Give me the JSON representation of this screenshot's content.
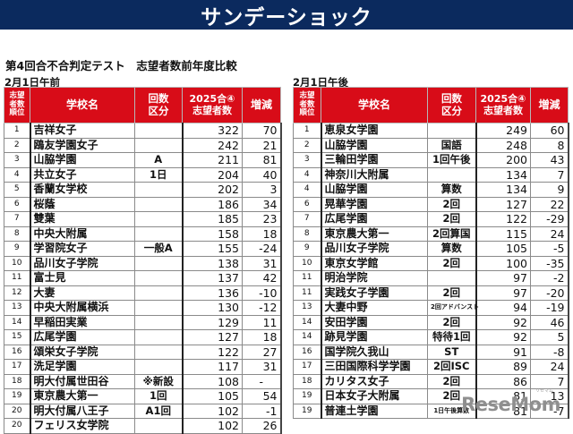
{
  "banner": {
    "title": "サンデーショック"
  },
  "subtitle": "第4回合不合判定テスト　志望者数前年度比較",
  "headers": {
    "rank": [
      "志望",
      "者数",
      "順位"
    ],
    "name": "学校名",
    "type": [
      "回数",
      "区分"
    ],
    "count": [
      "2025合④",
      "志望者数"
    ],
    "diff": "増減"
  },
  "tables": [
    {
      "label": "2月1日午前",
      "rows": [
        {
          "rank": "1",
          "name": "吉祥女子",
          "type": "",
          "count": "322",
          "diff": "70"
        },
        {
          "rank": "2",
          "name": "鴎友学園女子",
          "type": "",
          "count": "242",
          "diff": "21"
        },
        {
          "rank": "3",
          "name": "山脇学園",
          "type": "A",
          "count": "211",
          "diff": "81"
        },
        {
          "rank": "4",
          "name": "共立女子",
          "type": "1日",
          "count": "204",
          "diff": "40"
        },
        {
          "rank": "5",
          "name": "香蘭女学校",
          "type": "",
          "count": "202",
          "diff": "3"
        },
        {
          "rank": "6",
          "name": "桜蔭",
          "type": "",
          "count": "186",
          "diff": "34"
        },
        {
          "rank": "7",
          "name": "雙葉",
          "type": "",
          "count": "185",
          "diff": "23"
        },
        {
          "rank": "8",
          "name": "中央大附属",
          "type": "",
          "count": "158",
          "diff": "18"
        },
        {
          "rank": "9",
          "name": "学習院女子",
          "type": "一般A",
          "count": "155",
          "diff": "-24"
        },
        {
          "rank": "10",
          "name": "品川女子学院",
          "type": "",
          "count": "138",
          "diff": "31"
        },
        {
          "rank": "11",
          "name": "富士見",
          "type": "",
          "count": "137",
          "diff": "42"
        },
        {
          "rank": "12",
          "name": "大妻",
          "type": "",
          "count": "136",
          "diff": "-10"
        },
        {
          "rank": "13",
          "name": "中央大附属横浜",
          "type": "",
          "count": "130",
          "diff": "-12"
        },
        {
          "rank": "14",
          "name": "早稲田実業",
          "type": "",
          "count": "129",
          "diff": "11"
        },
        {
          "rank": "15",
          "name": "広尾学園",
          "type": "",
          "count": "127",
          "diff": "18"
        },
        {
          "rank": "16",
          "name": "頌栄女子学院",
          "type": "",
          "count": "122",
          "diff": "27"
        },
        {
          "rank": "17",
          "name": "洗足学園",
          "type": "",
          "count": "117",
          "diff": "31"
        },
        {
          "rank": "18",
          "name": "明大付属世田谷",
          "type": "※新設",
          "count": "108",
          "diff": "-"
        },
        {
          "rank": "19",
          "name": "東京農大第一",
          "type": "1回",
          "count": "105",
          "diff": "54"
        },
        {
          "rank": "20",
          "name": "明大付属八王子",
          "type": "A1回",
          "count": "102",
          "diff": "-1"
        },
        {
          "rank": "20",
          "name": "フェリス女学院",
          "type": "",
          "count": "102",
          "diff": "26"
        }
      ]
    },
    {
      "label": "2月1日午後",
      "rows": [
        {
          "rank": "1",
          "name": "恵泉女学園",
          "type": "",
          "count": "249",
          "diff": "60"
        },
        {
          "rank": "2",
          "name": "山脇学園",
          "type": "国語",
          "count": "248",
          "diff": "8"
        },
        {
          "rank": "3",
          "name": "三輪田学園",
          "type": "1回午後",
          "count": "200",
          "diff": "43"
        },
        {
          "rank": "4",
          "name": "神奈川大附属",
          "type": "",
          "count": "134",
          "diff": "7"
        },
        {
          "rank": "4",
          "name": "山脇学園",
          "type": "算数",
          "count": "134",
          "diff": "9"
        },
        {
          "rank": "6",
          "name": "晃華学園",
          "type": "2回",
          "count": "127",
          "diff": "22"
        },
        {
          "rank": "7",
          "name": "広尾学園",
          "type": "2回",
          "count": "122",
          "diff": "-29"
        },
        {
          "rank": "8",
          "name": "東京農大第一",
          "type": "2回算国",
          "count": "115",
          "diff": "24"
        },
        {
          "rank": "9",
          "name": "品川女子学院",
          "type": "算数",
          "count": "105",
          "diff": "-5"
        },
        {
          "rank": "10",
          "name": "東京女学館",
          "type": "2回",
          "count": "100",
          "diff": "-35"
        },
        {
          "rank": "11",
          "name": "明治学院",
          "type": "",
          "count": "97",
          "diff": "-2"
        },
        {
          "rank": "11",
          "name": "実践女子学園",
          "type": "2回",
          "count": "97",
          "diff": "-20"
        },
        {
          "rank": "13",
          "name": "大妻中野",
          "type": "2回アドバンスト",
          "count": "94",
          "diff": "-19"
        },
        {
          "rank": "14",
          "name": "安田学園",
          "type": "2回",
          "count": "92",
          "diff": "46"
        },
        {
          "rank": "14",
          "name": "跡見学園",
          "type": "特待1回",
          "count": "92",
          "diff": "5"
        },
        {
          "rank": "16",
          "name": "国学院久我山",
          "type": "ST",
          "count": "91",
          "diff": "-8"
        },
        {
          "rank": "17",
          "name": "三田国際科学学園",
          "type": "2回ISC",
          "count": "89",
          "diff": "24"
        },
        {
          "rank": "18",
          "name": "カリタス女子",
          "type": "2回",
          "count": "86",
          "diff": "7"
        },
        {
          "rank": "19",
          "name": "日本女子大附属",
          "type": "2回",
          "count": "81",
          "diff": "13"
        },
        {
          "rank": "19",
          "name": "普連土学園",
          "type": "1日午後算数",
          "count": "81",
          "diff": "-7"
        }
      ]
    }
  ],
  "logo": {
    "text": "ReseMom",
    "ruby": "リセマム"
  },
  "colors": {
    "banner": "#0b2a5e",
    "header_red": "#d80c18"
  }
}
